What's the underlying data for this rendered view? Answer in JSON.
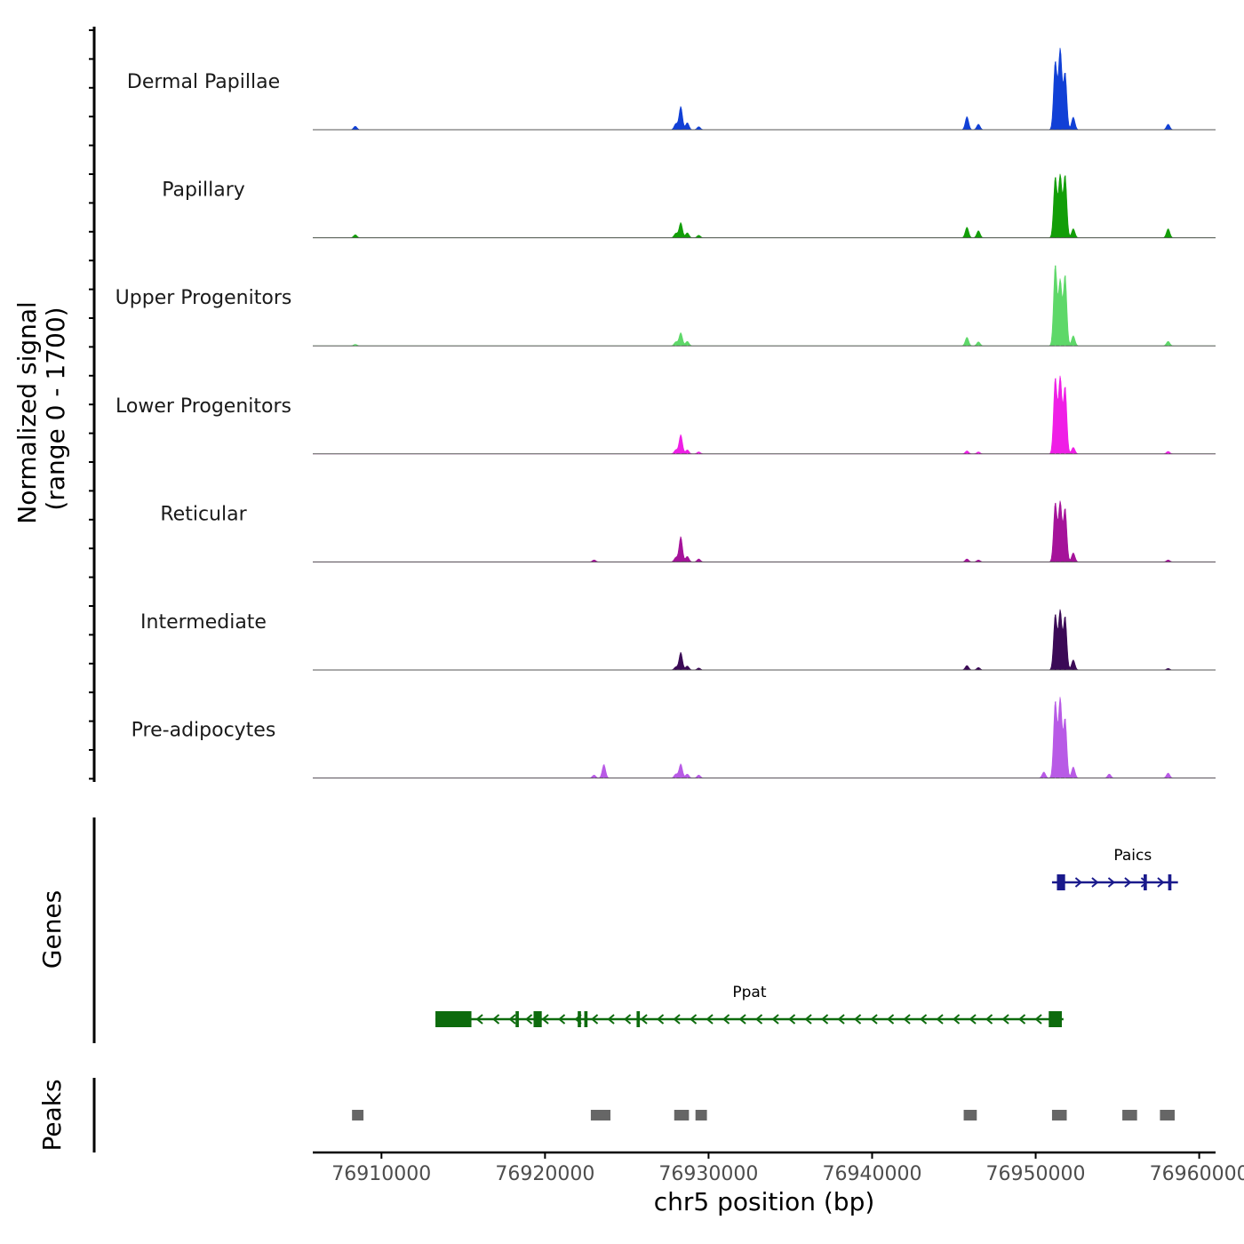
{
  "chart_data": {
    "type": "area",
    "title": "",
    "chromosome": "chr5",
    "xlabel": "chr5 position (bp)",
    "xlim": [
      76905800,
      76961000
    ],
    "xticks": [
      76910000,
      76920000,
      76930000,
      76940000,
      76950000,
      76960000
    ],
    "xtick_labels": [
      "76910000",
      "76920000",
      "76930000",
      "76940000",
      "76950000",
      "76960000"
    ],
    "coverage": {
      "ylabel_line1": "Normalized signal",
      "ylabel_line2": "(range 0 - 1700)",
      "ylim": [
        0,
        1700
      ],
      "series": [
        {
          "name": "Dermal Papillae",
          "color": "#1140d6",
          "peaks": [
            [
              76908400,
              70
            ],
            [
              76928000,
              120
            ],
            [
              76928300,
              460
            ],
            [
              76928700,
              140
            ],
            [
              76929400,
              60
            ],
            [
              76945800,
              260
            ],
            [
              76946500,
              110
            ],
            [
              76951200,
              1350
            ],
            [
              76951500,
              1600
            ],
            [
              76951800,
              1130
            ],
            [
              76952300,
              250
            ],
            [
              76958100,
              110
            ]
          ]
        },
        {
          "name": "Papillary",
          "color": "#129e08",
          "peaks": [
            [
              76908400,
              60
            ],
            [
              76928000,
              90
            ],
            [
              76928300,
              300
            ],
            [
              76928700,
              100
            ],
            [
              76929400,
              50
            ],
            [
              76945800,
              210
            ],
            [
              76946500,
              140
            ],
            [
              76951200,
              1200
            ],
            [
              76951500,
              1240
            ],
            [
              76951800,
              1240
            ],
            [
              76952300,
              180
            ],
            [
              76958100,
              180
            ]
          ]
        },
        {
          "name": "Upper Progenitors",
          "color": "#5ed869",
          "peaks": [
            [
              76908400,
              30
            ],
            [
              76928000,
              80
            ],
            [
              76928300,
              260
            ],
            [
              76928700,
              90
            ],
            [
              76945800,
              170
            ],
            [
              76946500,
              80
            ],
            [
              76951200,
              1600
            ],
            [
              76951500,
              1300
            ],
            [
              76951800,
              1400
            ],
            [
              76952300,
              200
            ],
            [
              76958100,
              90
            ]
          ]
        },
        {
          "name": "Lower Progenitors",
          "color": "#ef1ee6",
          "peaks": [
            [
              76928000,
              80
            ],
            [
              76928300,
              380
            ],
            [
              76928700,
              80
            ],
            [
              76929400,
              40
            ],
            [
              76945800,
              60
            ],
            [
              76946500,
              40
            ],
            [
              76951200,
              1500
            ],
            [
              76951500,
              1520
            ],
            [
              76951800,
              1330
            ],
            [
              76952300,
              130
            ],
            [
              76958100,
              50
            ]
          ]
        },
        {
          "name": "Reticular",
          "color": "#a5139a",
          "peaks": [
            [
              76923000,
              40
            ],
            [
              76928000,
              90
            ],
            [
              76928300,
              500
            ],
            [
              76928700,
              110
            ],
            [
              76929400,
              60
            ],
            [
              76945800,
              60
            ],
            [
              76946500,
              40
            ],
            [
              76951200,
              1170
            ],
            [
              76951500,
              1190
            ],
            [
              76951800,
              1060
            ],
            [
              76952300,
              180
            ],
            [
              76958100,
              40
            ]
          ]
        },
        {
          "name": "Intermediate",
          "color": "#3b0a56",
          "peaks": [
            [
              76928000,
              60
            ],
            [
              76928300,
              350
            ],
            [
              76928700,
              80
            ],
            [
              76929400,
              40
            ],
            [
              76945800,
              90
            ],
            [
              76946500,
              50
            ],
            [
              76951200,
              1100
            ],
            [
              76951500,
              1180
            ],
            [
              76951800,
              1060
            ],
            [
              76952300,
              200
            ],
            [
              76958100,
              30
            ]
          ]
        },
        {
          "name": "Pre-adipocytes",
          "color": "#b85ae6",
          "peaks": [
            [
              76923000,
              60
            ],
            [
              76923600,
              270
            ],
            [
              76928000,
              80
            ],
            [
              76928300,
              280
            ],
            [
              76928700,
              80
            ],
            [
              76929400,
              60
            ],
            [
              76950500,
              120
            ],
            [
              76951200,
              1520
            ],
            [
              76951500,
              1580
            ],
            [
              76951800,
              1180
            ],
            [
              76952300,
              220
            ],
            [
              76954500,
              80
            ],
            [
              76958100,
              100
            ]
          ]
        }
      ]
    },
    "genes": {
      "ylabel": "Genes",
      "items": [
        {
          "name": "Paics",
          "strand": "+",
          "start": 76951000,
          "end": 76958700,
          "color": "#1a1a8c",
          "exons": [
            [
              76951300,
              76951800
            ],
            [
              76956600,
              76956800
            ],
            [
              76958100,
              76958300
            ]
          ]
        },
        {
          "name": "Ppat",
          "strand": "-",
          "start": 76913300,
          "end": 76951700,
          "color": "#0d6b0d",
          "exons": [
            [
              76913300,
              76915500
            ],
            [
              76918200,
              76918400
            ],
            [
              76919300,
              76919800
            ],
            [
              76922000,
              76922200
            ],
            [
              76922400,
              76922600
            ],
            [
              76925600,
              76925800
            ],
            [
              76950800,
              76951600
            ]
          ]
        }
      ]
    },
    "peaks": {
      "ylabel": "Peaks",
      "color": "#666666",
      "regions": [
        [
          76908200,
          76908900
        ],
        [
          76922800,
          76924000
        ],
        [
          76927900,
          76928800
        ],
        [
          76929200,
          76929900
        ],
        [
          76945600,
          76946400
        ],
        [
          76951000,
          76951900
        ],
        [
          76955300,
          76956200
        ],
        [
          76957600,
          76958500
        ]
      ]
    }
  }
}
